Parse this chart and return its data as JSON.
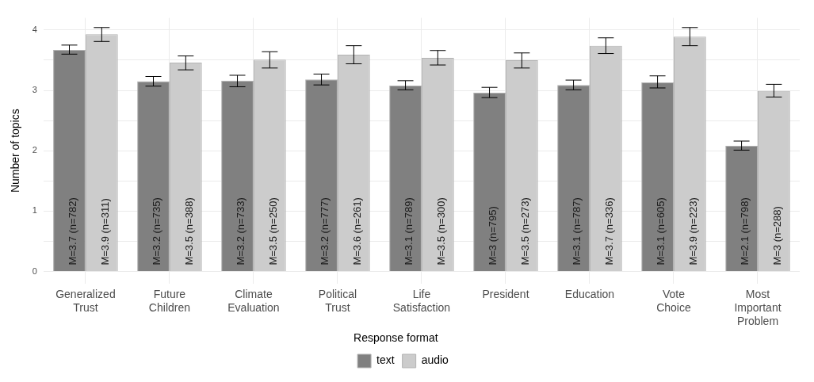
{
  "chart_data": {
    "type": "bar",
    "ylabel": "Number of topics",
    "legend_title": "Response format",
    "categories": [
      "Generalized Trust",
      "Future Children",
      "Climate Evaluation",
      "Political Trust",
      "Life Satisfaction",
      "President",
      "Education",
      "Vote Choice",
      "Most Important Problem"
    ],
    "series": [
      {
        "name": "text",
        "color": "#808080",
        "values": [
          3.67,
          3.15,
          3.16,
          3.18,
          3.08,
          2.96,
          3.09,
          3.13,
          2.08
        ],
        "errors": [
          [
            3.6,
            3.75
          ],
          [
            3.07,
            3.23
          ],
          [
            3.06,
            3.25
          ],
          [
            3.09,
            3.27
          ],
          [
            3.01,
            3.16
          ],
          [
            2.88,
            3.05
          ],
          [
            3.01,
            3.17
          ],
          [
            3.04,
            3.24
          ],
          [
            2.01,
            2.16
          ]
        ],
        "value_labels": [
          "M=3.7 (n=782)",
          "M=3.2 (n=735)",
          "M=3.2 (n=733)",
          "M=3.2 (n=777)",
          "M=3.1 (n=789)",
          "M=3 (n=795)",
          "M=3.1 (n=787)",
          "M=3.1 (n=605)",
          "M=2.1 (n=798)"
        ]
      },
      {
        "name": "audio",
        "color": "#cccccc",
        "values": [
          3.93,
          3.46,
          3.51,
          3.59,
          3.54,
          3.5,
          3.74,
          3.89,
          2.99
        ],
        "errors": [
          [
            3.81,
            4.04
          ],
          [
            3.34,
            3.57
          ],
          [
            3.37,
            3.64
          ],
          [
            3.44,
            3.74
          ],
          [
            3.42,
            3.66
          ],
          [
            3.37,
            3.62
          ],
          [
            3.61,
            3.87
          ],
          [
            3.74,
            4.04
          ],
          [
            2.89,
            3.1
          ]
        ],
        "value_labels": [
          "M=3.9 (n=311)",
          "M=3.5 (n=388)",
          "M=3.5 (n=250)",
          "M=3.6 (n=261)",
          "M=3.5 (n=300)",
          "M=3.5 (n=273)",
          "M=3.7 (n=336)",
          "M=3.9 (n=223)",
          "M=3 (n=288)"
        ]
      }
    ],
    "ylim": [
      -0.2,
      4.2
    ],
    "yticks": [
      0,
      {
        "value": 0.5,
        "label": null
      },
      1,
      {
        "value": 1.5,
        "label": null
      },
      2,
      {
        "value": 2.5,
        "label": null
      },
      3,
      {
        "value": 3.5,
        "label": null
      },
      4
    ],
    "grid": true,
    "legend": "bottom"
  }
}
